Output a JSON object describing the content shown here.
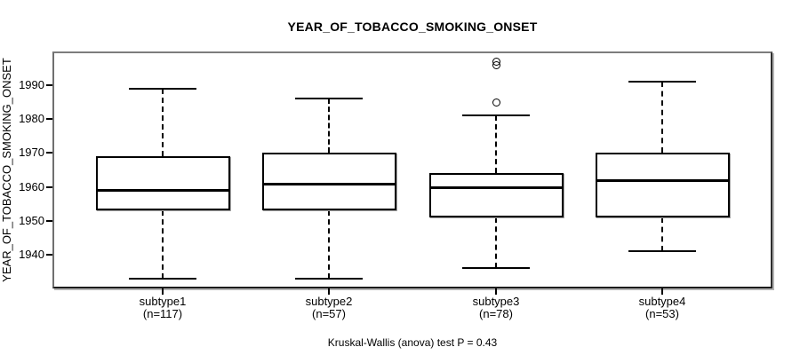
{
  "colors": {
    "ink": "#000000",
    "background": "#ffffff"
  },
  "chart_data": {
    "type": "boxplot",
    "title": "YEAR_OF_TOBACCO_SMOKING_ONSET",
    "ylabel": "YEAR_OF_TOBACCO_SMOKING_ONSET",
    "caption": "Kruskal-Wallis (anova) test P = 0.43",
    "ylim": [
      1930,
      2000
    ],
    "yticks": [
      1940,
      1950,
      1960,
      1970,
      1980,
      1990
    ],
    "grid": false,
    "groups": [
      {
        "label": "subtype1",
        "sublabel": "(n=117)",
        "n": 117,
        "whisker_low": 1933,
        "q1": 1953,
        "median": 1959,
        "q3": 1969,
        "whisker_high": 1989,
        "outliers": []
      },
      {
        "label": "subtype2",
        "sublabel": "(n=57)",
        "n": 57,
        "whisker_low": 1933,
        "q1": 1953,
        "median": 1961,
        "q3": 1970,
        "whisker_high": 1986,
        "outliers": []
      },
      {
        "label": "subtype3",
        "sublabel": "(n=78)",
        "n": 78,
        "whisker_low": 1936,
        "q1": 1951,
        "median": 1960,
        "q3": 1964,
        "whisker_high": 1981,
        "outliers": [
          1985,
          1996,
          1997
        ]
      },
      {
        "label": "subtype4",
        "sublabel": "(n=53)",
        "n": 53,
        "whisker_low": 1941,
        "q1": 1951,
        "median": 1962,
        "q3": 1970,
        "whisker_high": 1991,
        "outliers": []
      }
    ]
  }
}
